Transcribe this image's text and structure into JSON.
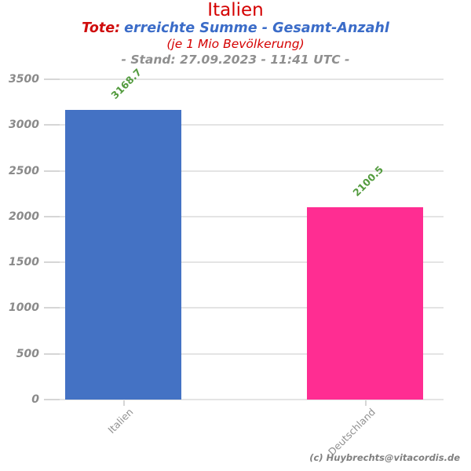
{
  "header": {
    "title": "Italien",
    "subtitle_prefix": "Tote:",
    "subtitle_main": "erreichte Summe - Gesamt-Anzahl",
    "subnote": "(je 1 Mio Bevölkerung)",
    "stand": "- Stand: 27.09.2023 - 11:41 UTC -"
  },
  "footer": {
    "copyright": "(c) Huybrechts@vitacordis.de"
  },
  "colors": {
    "title_red": "#d40000",
    "subtitle_red": "#cf0d0d",
    "subtitle_blue": "#3b6cc8",
    "stand_gray": "#8f8f8f",
    "axis_label_gray": "#8a8a8a",
    "value_label_green": "#539b3e",
    "gridline": "#e4e4e4",
    "bar_blue": "#4472c4",
    "bar_pink": "#ff2d92"
  },
  "chart_data": {
    "type": "bar",
    "title": "Italien",
    "subtitle": "Tote: erreichte Summe - Gesamt-Anzahl (je 1 Mio Bevölkerung) - Stand: 27.09.2023 - 11:41 UTC -",
    "categories": [
      "Italien",
      "Deutschland"
    ],
    "values": [
      3168.7,
      2100.5
    ],
    "bar_colors": [
      "#4472c4",
      "#ff2d92"
    ],
    "value_labels": [
      "3168.7",
      "2100.5"
    ],
    "xlabel": "",
    "ylabel": "",
    "ylim": [
      0,
      3500
    ],
    "yticks": [
      0,
      500,
      1000,
      1500,
      2000,
      2500,
      3000,
      3500
    ],
    "grid": true,
    "legend": false
  }
}
